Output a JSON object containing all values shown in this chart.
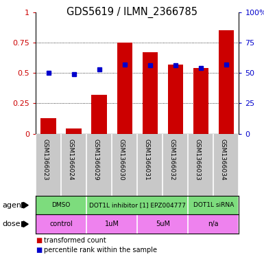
{
  "title": "GDS5619 / ILMN_2366785",
  "samples": [
    "GSM1366023",
    "GSM1366024",
    "GSM1366029",
    "GSM1366030",
    "GSM1366031",
    "GSM1366032",
    "GSM1366033",
    "GSM1366034"
  ],
  "bar_values": [
    0.13,
    0.04,
    0.32,
    0.75,
    0.67,
    0.57,
    0.54,
    0.85
  ],
  "dot_values": [
    0.5,
    0.49,
    0.53,
    0.57,
    0.56,
    0.56,
    0.54,
    0.57
  ],
  "bar_color": "#cc0000",
  "dot_color": "#0000cc",
  "agent_groups": [
    {
      "label": "DMSO",
      "start": 0,
      "end": 2,
      "color": "#7ddc7d"
    },
    {
      "label": "DOT1L inhibitor [1] EPZ004777",
      "start": 2,
      "end": 6,
      "color": "#7ddc7d"
    },
    {
      "label": "DOT1L siRNA",
      "start": 6,
      "end": 8,
      "color": "#7ddc7d"
    }
  ],
  "dose_groups": [
    {
      "label": "control",
      "start": 0,
      "end": 2,
      "color": "#ee82ee"
    },
    {
      "label": "1uM",
      "start": 2,
      "end": 4,
      "color": "#ee82ee"
    },
    {
      "label": "5uM",
      "start": 4,
      "end": 6,
      "color": "#ee82ee"
    },
    {
      "label": "n/a",
      "start": 6,
      "end": 8,
      "color": "#ee82ee"
    }
  ],
  "ylim": [
    0,
    1.0
  ],
  "yticks": [
    0,
    0.25,
    0.5,
    0.75,
    1.0
  ],
  "ytick_labels_left": [
    "0",
    "0.25",
    "0.5",
    "0.75",
    "1"
  ],
  "ytick_labels_right": [
    "0",
    "25",
    "50",
    "75",
    "100%"
  ],
  "legend_bar": "transformed count",
  "legend_dot": "percentile rank within the sample",
  "agent_label": "agent",
  "dose_label": "dose",
  "bar_color_legend": "#cc0000",
  "dot_color_legend": "#0000cc",
  "sample_bg_color": "#c8c8c8",
  "sample_divider_color": "#ffffff",
  "ylabel_left_color": "#cc0000",
  "ylabel_right_color": "#0000cc"
}
